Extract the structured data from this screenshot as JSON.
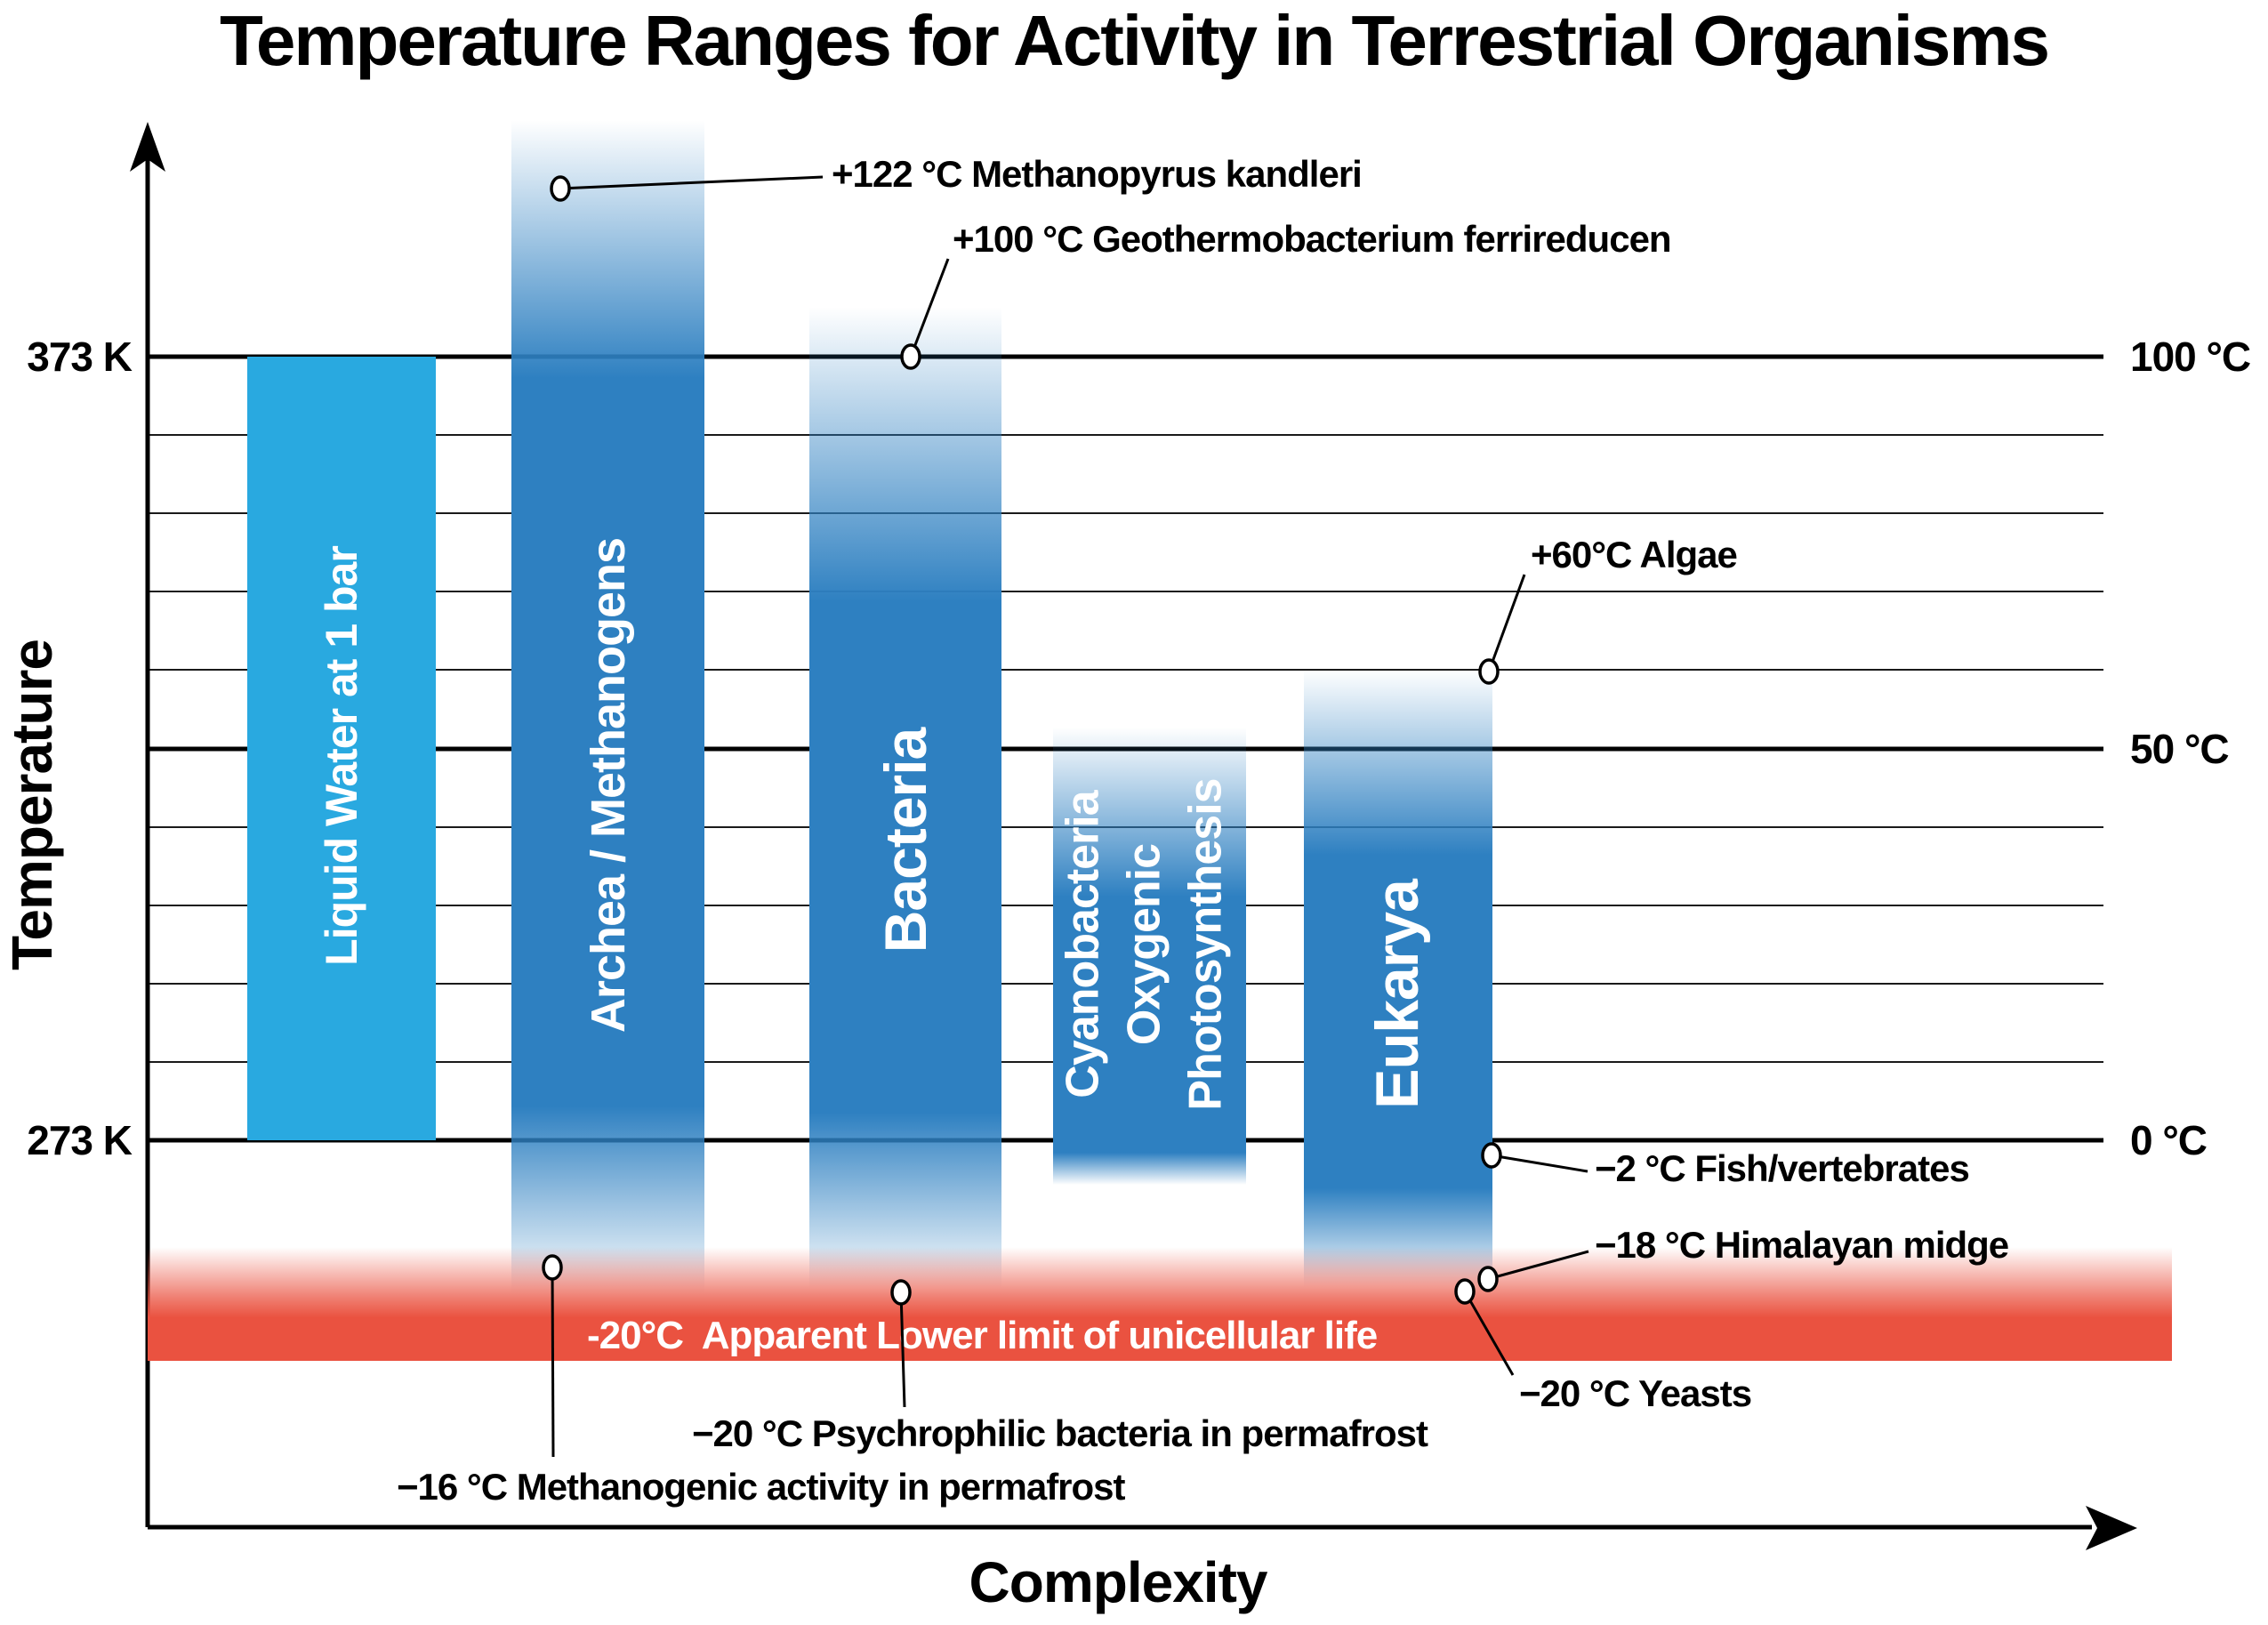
{
  "title": "Temperature Ranges for Activity in Terrestrial Organisms",
  "axes": {
    "y_label": "Temperature",
    "x_label": "Complexity",
    "left_ticks": [
      {
        "id": "373k",
        "label": "373 K",
        "temp_c": 100
      },
      {
        "id": "273k",
        "label": "273 K",
        "temp_c": 0
      }
    ],
    "right_ticks": [
      {
        "id": "100c",
        "label": "100 °C",
        "temp_c": 100
      },
      {
        "id": "50c",
        "label": "50 °C",
        "temp_c": 50
      },
      {
        "id": "0c",
        "label": "0 °C",
        "temp_c": 0
      }
    ]
  },
  "chart_data": {
    "type": "bar",
    "title": "Temperature Ranges for Activity in Terrestrial Organisms",
    "xlabel": "Complexity",
    "ylabel": "Temperature",
    "y_axis": {
      "unit": "°C",
      "range_c": [
        -25,
        130
      ],
      "kelvin_reference": {
        "273 K": "0 °C",
        "373 K": "100 °C"
      },
      "gridlines_c": [
        100,
        90,
        80,
        70,
        60,
        50,
        40,
        30,
        20,
        10,
        0
      ],
      "thick_gridlines_c": [
        100,
        50,
        0
      ],
      "grid": "on"
    },
    "bars": [
      {
        "id": "liquid-water",
        "label": "Liquid Water at 1 bar",
        "top_c": 100,
        "bottom_c": 0,
        "fade_top": false,
        "fade_bottom": false,
        "color": "#29A9E0"
      },
      {
        "id": "archea",
        "label": "Archea / Methanogens",
        "top_c": 122,
        "bottom_c": -16,
        "fade_top": true,
        "fade_bottom": true,
        "color": "#2E80C1"
      },
      {
        "id": "bacteria",
        "label": "Bacteria",
        "top_c": 100,
        "bottom_c": -20,
        "fade_top": true,
        "fade_bottom": true,
        "color": "#2E80C1"
      },
      {
        "id": "cyanobacteria",
        "label": "Cyanobacteria Oxygenic Photosynthesis",
        "label_lines": [
          "Cyanobacteria",
          "Oxygenic",
          "Photosynthesis"
        ],
        "top_c": 53,
        "bottom_c": -5,
        "fade_top": true,
        "fade_bottom": true,
        "color": "#2E80C1"
      },
      {
        "id": "eukarya",
        "label": "Eukarya",
        "top_c": 60,
        "bottom_c": -20,
        "fade_top": true,
        "fade_bottom": true,
        "color": "#2E80C1"
      }
    ],
    "annotations": [
      {
        "id": "methanopyrus",
        "text": "+122 °C Methanopyrus kandleri",
        "temp_c": 122,
        "target": "archea"
      },
      {
        "id": "geothermo",
        "text": "+100 °C Geothermobacterium ferrireducen",
        "temp_c": 100,
        "target": "bacteria"
      },
      {
        "id": "algae",
        "text": "+60°C Algae",
        "temp_c": 60,
        "target": "eukarya"
      },
      {
        "id": "fish",
        "text": "−2 °C Fish/vertebrates",
        "temp_c": -2,
        "target": "eukarya"
      },
      {
        "id": "midge",
        "text": "−18 °C Himalayan midge",
        "temp_c": -18,
        "target": "eukarya"
      },
      {
        "id": "yeasts",
        "text": "−20 °C Yeasts",
        "temp_c": -20,
        "target": "eukarya"
      },
      {
        "id": "psychro",
        "text": "−20 °C Psychrophilic bacteria in permafrost",
        "temp_c": -20,
        "target": "bacteria"
      },
      {
        "id": "methanogenic",
        "text": "−16 °C Methanogenic activity in permafrost",
        "temp_c": -16,
        "target": "archea"
      }
    ],
    "lower_limit_band": {
      "label": "-20°C  Apparent Lower limit of unicellular life",
      "temp_c": -20,
      "color": "#EA5240"
    }
  }
}
